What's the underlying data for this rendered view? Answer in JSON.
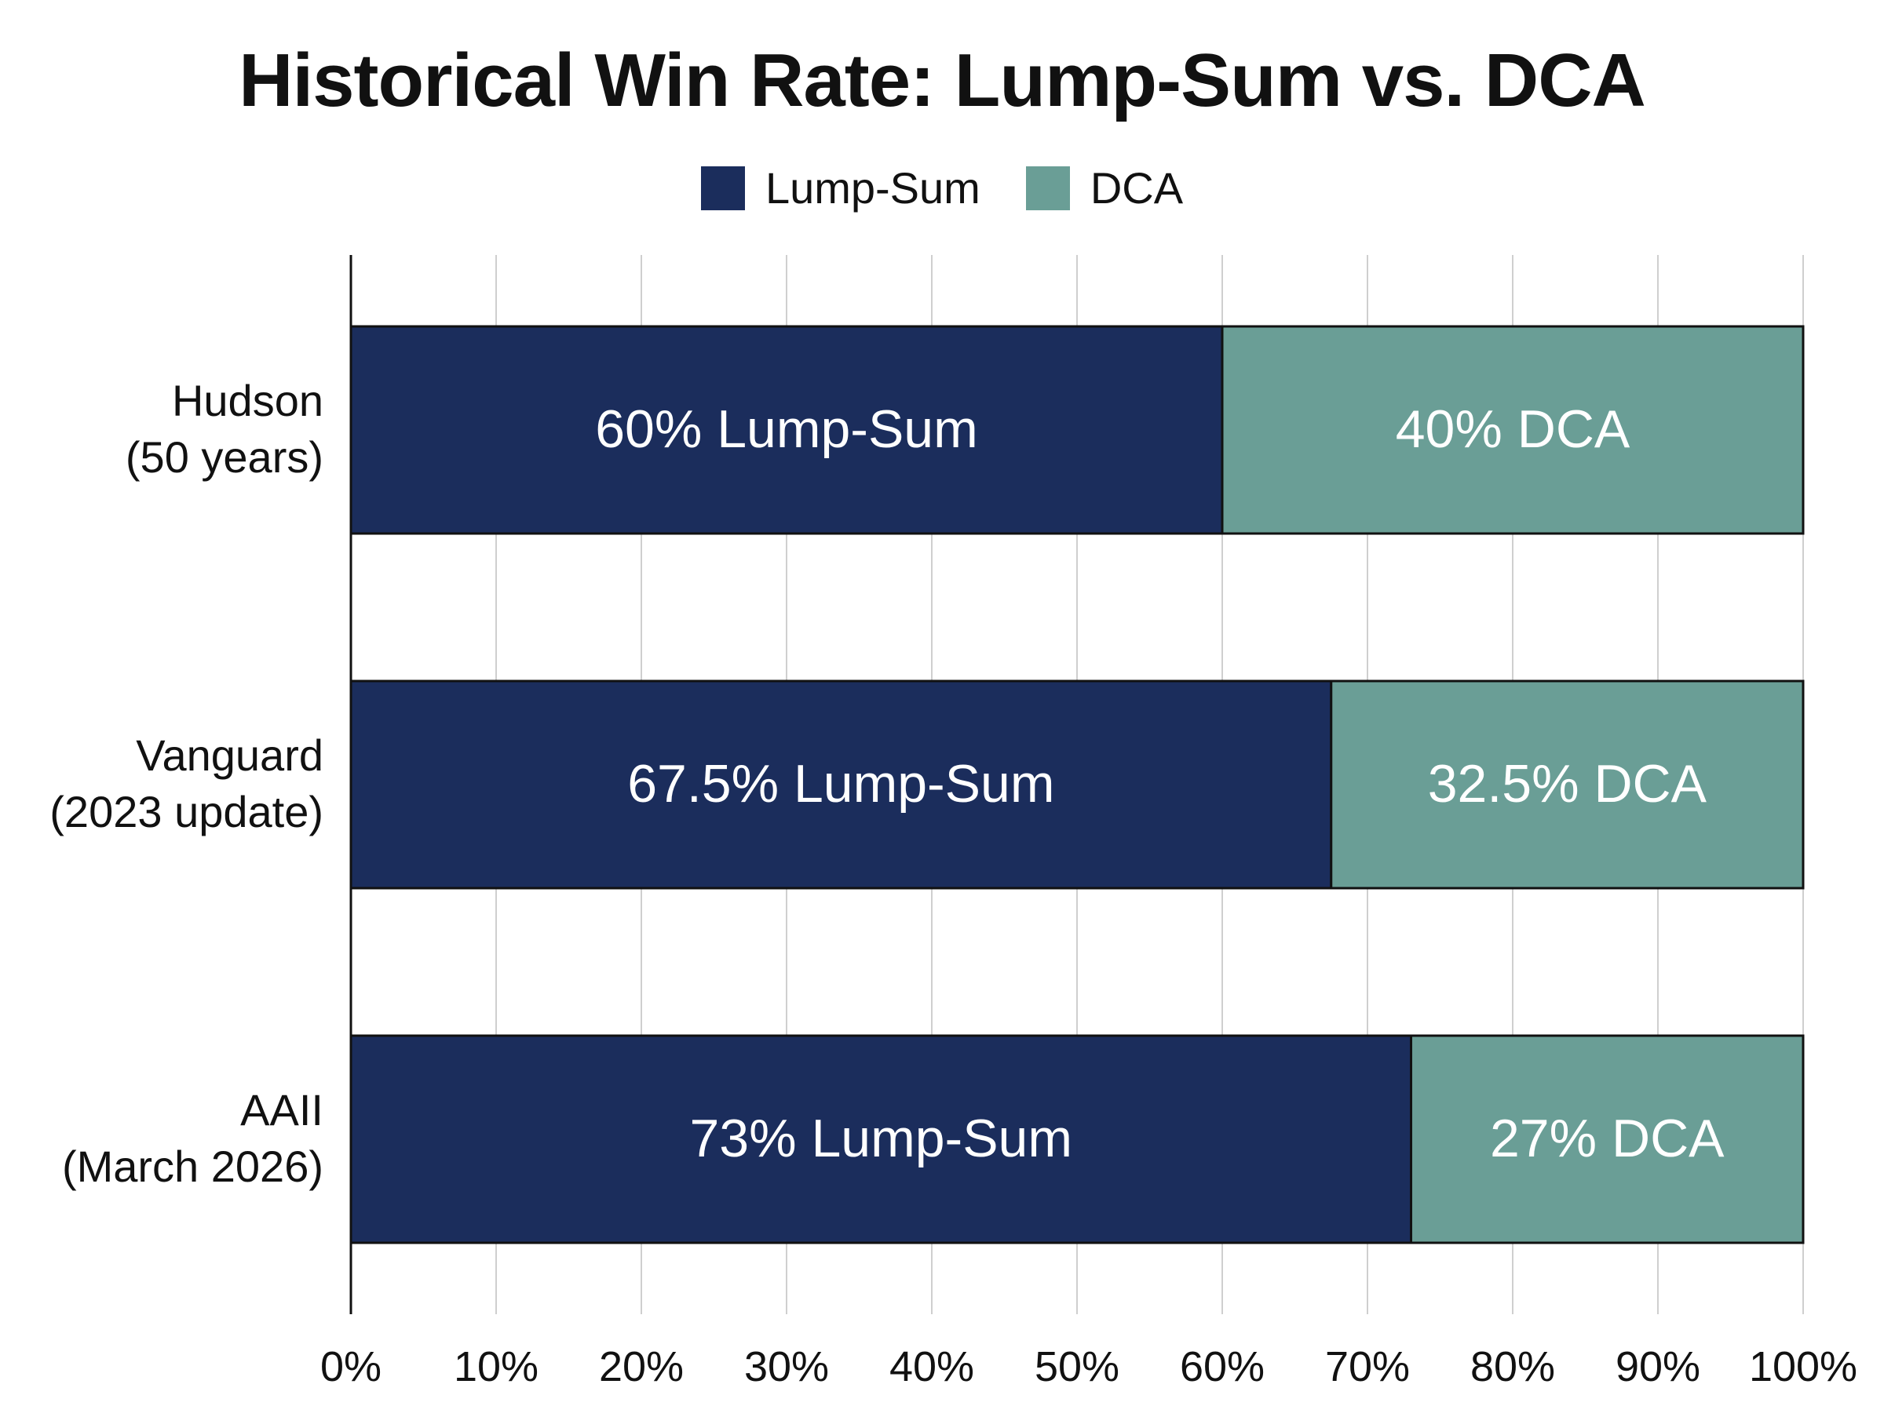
{
  "chart_data": {
    "type": "bar",
    "orientation": "horizontal",
    "stacked": true,
    "title": "Historical Win Rate: Lump-Sum vs. DCA",
    "xlabel": "",
    "ylabel": "",
    "xlim": [
      0,
      100
    ],
    "x_ticks": [
      0,
      10,
      20,
      30,
      40,
      50,
      60,
      70,
      80,
      90,
      100
    ],
    "x_tick_labels": [
      "0%",
      "10%",
      "20%",
      "30%",
      "40%",
      "50%",
      "60%",
      "70%",
      "80%",
      "90%",
      "100%"
    ],
    "grid": "vertical",
    "legend_position": "top-center",
    "categories": [
      [
        "Hudson",
        "(50 years)"
      ],
      [
        "Vanguard",
        "(2023 update)"
      ],
      [
        "AAII",
        "(March 2026)"
      ]
    ],
    "series": [
      {
        "name": "Lump-Sum",
        "color": "#1b2d5c",
        "values": [
          60,
          67.5,
          73
        ],
        "labels": [
          "60% Lump-Sum",
          "67.5% Lump-Sum",
          "73% Lump-Sum"
        ]
      },
      {
        "name": "DCA",
        "color": "#6a9e96",
        "values": [
          40,
          32.5,
          27
        ],
        "labels": [
          "40% DCA",
          "32.5% DCA",
          "27% DCA"
        ]
      }
    ]
  }
}
